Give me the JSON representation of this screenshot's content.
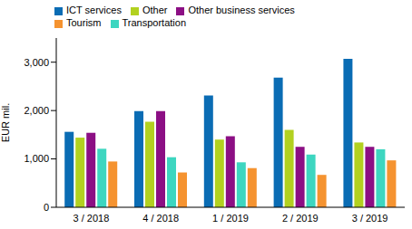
{
  "chart_data": {
    "type": "bar",
    "y_label": "EUR mil.",
    "categories": [
      "3 / 2018",
      "4 / 2018",
      "1 / 2019",
      "2 / 2019",
      "3 / 2019"
    ],
    "series": [
      {
        "name": "ICT services",
        "color": "#0a6cb4",
        "values": [
          1560,
          1990,
          2310,
          2680,
          3070
        ]
      },
      {
        "name": "Other",
        "color": "#b2d120",
        "values": [
          1440,
          1770,
          1400,
          1600,
          1340
        ]
      },
      {
        "name": "Other business services",
        "color": "#8c0f84",
        "values": [
          1540,
          1990,
          1470,
          1250,
          1250
        ]
      },
      {
        "name": "Transportation",
        "color": "#3dd6c0",
        "values": [
          1210,
          1035,
          930,
          1090,
          1200
        ]
      },
      {
        "name": "Tourism",
        "color": "#f59330",
        "values": [
          947,
          720,
          810,
          670,
          970
        ]
      }
    ],
    "ylim": [
      0,
      3500
    ],
    "yticks": [
      0,
      {
        "value": 1000,
        "label": "1,000"
      },
      {
        "value": 2000,
        "label": "2,000"
      },
      {
        "value": 3000,
        "label": "3,000"
      }
    ],
    "grid": false,
    "legend": "top-left"
  }
}
